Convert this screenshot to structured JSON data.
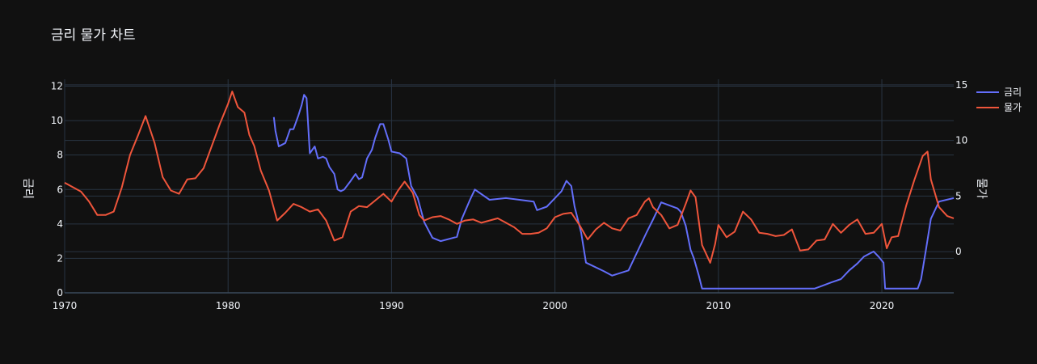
{
  "chart_data": {
    "type": "line",
    "title": "금리 물가 차트",
    "xlabel": "",
    "ylabel": "금리",
    "y2label": "물가",
    "xlim": [
      1970,
      2024.4
    ],
    "ylim": [
      0,
      12.4
    ],
    "y2lim": [
      -3.7,
      15.5
    ],
    "x_ticks": [
      "1970",
      "1980",
      "1990",
      "2000",
      "2010",
      "2020"
    ],
    "y_ticks": [
      "0",
      "2",
      "4",
      "6",
      "8",
      "10",
      "12"
    ],
    "y2_ticks": [
      "0",
      "5",
      "10",
      "15"
    ],
    "grid": true,
    "legend_position": "top-right",
    "colors": {
      "background": "#111111",
      "grid": "#283442",
      "text": "#f2f5fa",
      "rate": "#636efa",
      "inflation": "#ef553b"
    },
    "series": [
      {
        "name": "금리",
        "axis": "y",
        "color": "#636efa",
        "x": [
          1982.8,
          1982.9,
          1983.1,
          1983.5,
          1983.8,
          1984.0,
          1984.3,
          1984.5,
          1984.65,
          1984.8,
          1985.0,
          1985.3,
          1985.5,
          1985.8,
          1986.0,
          1986.2,
          1986.5,
          1986.7,
          1986.9,
          1987.1,
          1987.5,
          1987.8,
          1988.0,
          1988.2,
          1988.5,
          1988.8,
          1989.0,
          1989.3,
          1989.5,
          1989.8,
          1990.0,
          1990.5,
          1990.9,
          1991.2,
          1991.6,
          1992.0,
          1992.5,
          1993.0,
          1994.0,
          1994.3,
          1994.8,
          1995.1,
          1996.0,
          1997.0,
          1998.7,
          1998.9,
          1999.5,
          2000.0,
          2000.4,
          2000.7,
          2001.0,
          2001.2,
          2001.6,
          2001.9,
          2003.0,
          2003.5,
          2004.5,
          2005.0,
          2005.6,
          2006.0,
          2006.5,
          2007.5,
          2007.7,
          2008.0,
          2008.3,
          2008.5,
          2008.8,
          2009.0,
          2015.9,
          2016.9,
          2017.5,
          2018.0,
          2018.5,
          2018.9,
          2019.5,
          2019.8,
          2020.1,
          2020.2,
          2022.2,
          2022.4,
          2022.7,
          2023.0,
          2023.5,
          2024.4
        ],
        "y": [
          10.2,
          9.4,
          8.5,
          8.7,
          9.5,
          9.5,
          10.3,
          10.9,
          11.5,
          11.3,
          8.1,
          8.5,
          7.8,
          7.9,
          7.8,
          7.3,
          6.9,
          6.0,
          5.9,
          6.0,
          6.5,
          6.9,
          6.6,
          6.7,
          7.8,
          8.3,
          9.0,
          9.8,
          9.8,
          8.9,
          8.2,
          8.1,
          7.8,
          6.2,
          5.5,
          4.1,
          3.2,
          3.0,
          3.25,
          4.3,
          5.4,
          6.0,
          5.4,
          5.5,
          5.3,
          4.8,
          5.0,
          5.5,
          5.9,
          6.5,
          6.2,
          5.0,
          3.5,
          1.75,
          1.25,
          1.0,
          1.3,
          2.3,
          3.5,
          4.25,
          5.25,
          4.9,
          4.7,
          3.9,
          2.5,
          2.0,
          1.0,
          0.25,
          0.25,
          0.6,
          0.8,
          1.3,
          1.7,
          2.1,
          2.4,
          2.1,
          1.75,
          0.25,
          0.25,
          0.8,
          2.5,
          4.3,
          5.3,
          5.5
        ]
      },
      {
        "name": "물가",
        "axis": "y2",
        "color": "#ef553b",
        "x": [
          1970.0,
          1970.5,
          1971.0,
          1971.5,
          1972.0,
          1972.5,
          1973.0,
          1973.5,
          1974.0,
          1974.5,
          1974.95,
          1975.5,
          1976.0,
          1976.5,
          1977.0,
          1977.5,
          1978.0,
          1978.5,
          1979.0,
          1979.5,
          1980.0,
          1980.25,
          1980.6,
          1981.0,
          1981.3,
          1981.6,
          1982.0,
          1982.5,
          1983.0,
          1983.5,
          1984.0,
          1984.5,
          1985.0,
          1985.5,
          1986.0,
          1986.5,
          1987.0,
          1987.5,
          1988.0,
          1988.5,
          1989.0,
          1989.5,
          1990.0,
          1990.4,
          1990.8,
          1991.3,
          1991.7,
          1992.0,
          1992.5,
          1993.0,
          1993.5,
          1994.0,
          1994.5,
          1995.0,
          1995.5,
          1996.0,
          1996.5,
          1997.0,
          1997.5,
          1998.0,
          1998.5,
          1999.0,
          1999.5,
          2000.0,
          2000.5,
          2001.0,
          2001.5,
          2002.0,
          2002.5,
          2003.0,
          2003.5,
          2004.0,
          2004.5,
          2005.0,
          2005.5,
          2005.75,
          2006.0,
          2006.5,
          2007.0,
          2007.5,
          2008.0,
          2008.3,
          2008.6,
          2009.0,
          2009.25,
          2009.5,
          2009.8,
          2010.0,
          2010.5,
          2011.0,
          2011.5,
          2012.0,
          2012.5,
          2013.0,
          2013.5,
          2014.0,
          2014.5,
          2015.0,
          2015.5,
          2016.0,
          2016.5,
          2017.0,
          2017.5,
          2018.0,
          2018.5,
          2019.0,
          2019.5,
          2020.0,
          2020.3,
          2020.6,
          2021.0,
          2021.5,
          2022.0,
          2022.5,
          2022.8,
          2023.0,
          2023.5,
          2024.0,
          2024.4
        ],
        "y": [
          6.2,
          5.8,
          5.4,
          4.5,
          3.3,
          3.3,
          3.6,
          5.8,
          8.7,
          10.5,
          12.2,
          9.8,
          6.7,
          5.5,
          5.2,
          6.5,
          6.6,
          7.5,
          9.5,
          11.5,
          13.3,
          14.4,
          13.0,
          12.5,
          10.5,
          9.5,
          7.3,
          5.5,
          2.8,
          3.5,
          4.3,
          4.0,
          3.6,
          3.8,
          2.8,
          1.0,
          1.3,
          3.6,
          4.1,
          4.0,
          4.6,
          5.2,
          4.5,
          5.5,
          6.3,
          5.3,
          3.3,
          2.8,
          3.1,
          3.2,
          2.9,
          2.5,
          2.8,
          2.9,
          2.6,
          2.8,
          3.0,
          2.6,
          2.2,
          1.6,
          1.6,
          1.7,
          2.1,
          3.1,
          3.4,
          3.5,
          2.4,
          1.1,
          2.0,
          2.6,
          2.1,
          1.9,
          3.0,
          3.3,
          4.5,
          4.8,
          4.0,
          3.3,
          2.1,
          2.4,
          4.3,
          5.5,
          4.9,
          0.6,
          -0.2,
          -1.0,
          0.7,
          2.4,
          1.3,
          1.8,
          3.6,
          2.9,
          1.7,
          1.6,
          1.4,
          1.5,
          2.0,
          0.1,
          0.2,
          1.0,
          1.1,
          2.5,
          1.7,
          2.4,
          2.9,
          1.6,
          1.7,
          2.5,
          0.3,
          1.3,
          1.4,
          4.2,
          6.5,
          8.6,
          9.0,
          6.5,
          4.0,
          3.2,
          3.0
        ]
      }
    ]
  }
}
